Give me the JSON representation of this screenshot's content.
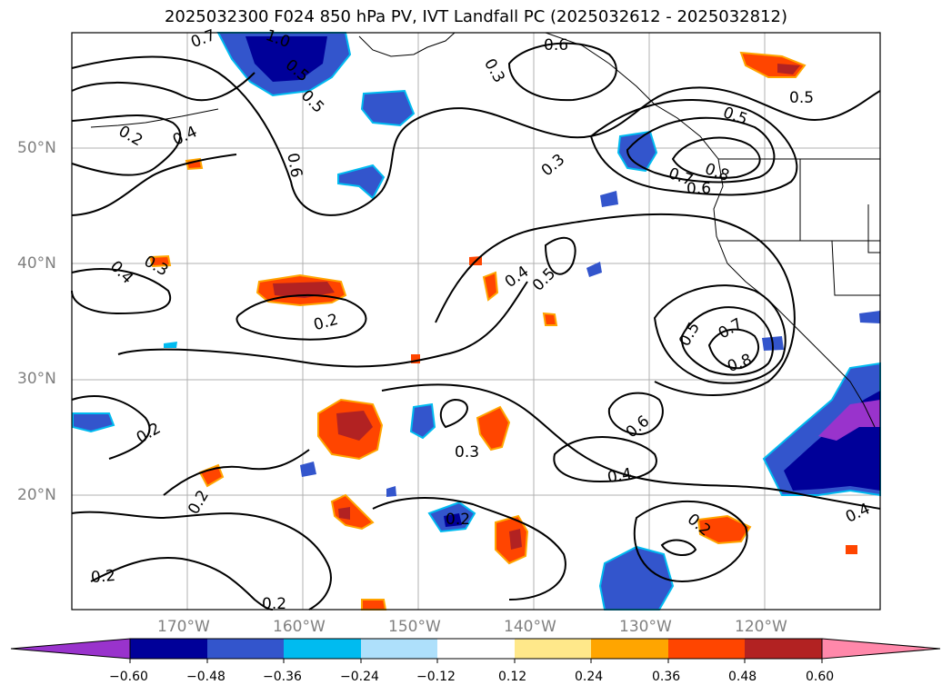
{
  "title": "2025032300 F024 850 hPa PV, IVT Landfall PC (2025032612 - 2025032812)",
  "map": {
    "lat_labels": [
      "50°N",
      "40°N",
      "30°N",
      "20°N"
    ],
    "lon_labels": [
      "170°W",
      "160°W",
      "150°W",
      "140°W",
      "130°W",
      "120°W"
    ],
    "contour_labels": [
      "0.7",
      "1.0",
      "0.6",
      "0.5",
      "0.5",
      "0.3",
      "0.2",
      "0.4",
      "0.6",
      "0.5",
      "0.3",
      "0.5",
      "0.7",
      "0.8",
      "0.6",
      "0.3",
      "0.4",
      "0.5",
      "0.4",
      "0.2",
      "0.5",
      "0.7",
      "0.8",
      "0.2",
      "0.3",
      "0.6",
      "0.4",
      "0.2",
      "0.2",
      "0.2",
      "0.4",
      "0.2",
      "0.2"
    ]
  },
  "colorbar": {
    "ticks": [
      "−0.60",
      "−0.48",
      "−0.36",
      "−0.24",
      "−0.12",
      "0.12",
      "0.24",
      "0.36",
      "0.48",
      "0.60"
    ],
    "colors": [
      "#9933cc",
      "#000099",
      "#3355cc",
      "#00bbf0",
      "#aee0fb",
      "#ffffff",
      "#ffe88a",
      "#ffa500",
      "#ff4500",
      "#b22222",
      "#ff88aa"
    ]
  }
}
